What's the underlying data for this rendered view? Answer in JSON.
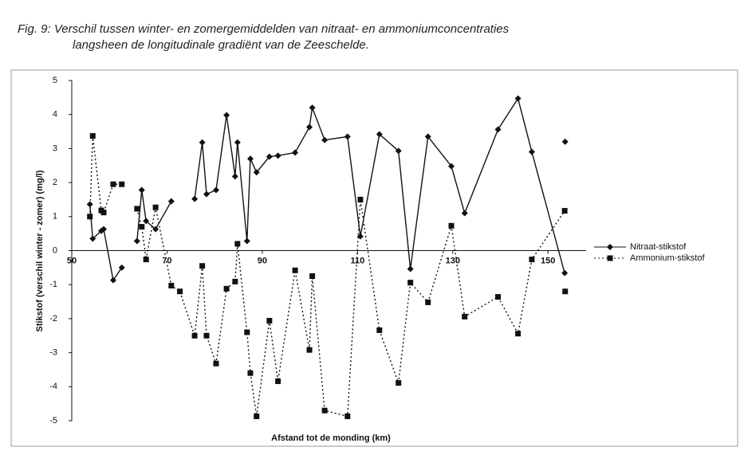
{
  "chart_data": {
    "type": "line",
    "caption": [
      "Fig. 9:  Verschil tussen winter- en zomergemiddelden van nitraat- en ammoniumconcentraties",
      "langsheen de longitudinale gradiënt van de Zeeschelde."
    ],
    "xlabel": "Afstand tot de monding (km)",
    "ylabel": "Stikstof (verschil winter - zomer) (mg/l)",
    "xlim": [
      50,
      158
    ],
    "xticks": [
      50,
      70,
      90,
      110,
      130,
      150
    ],
    "ylim": [
      -5,
      5
    ],
    "yticks": [
      -5,
      -4,
      -3,
      -2,
      -1,
      0,
      1,
      2,
      3,
      4,
      5
    ],
    "legend": "right",
    "series": [
      {
        "name": "Nitraat-stikstof",
        "color": "#111111",
        "style": "solid",
        "marker": "diamond",
        "x": [
          53.8,
          54.4,
          56.2,
          56.7,
          58.7,
          60.5,
          null,
          63.7,
          64.7,
          65.6,
          67.6,
          70.9,
          null,
          75.8,
          77.4,
          78.3,
          80.3,
          82.5,
          84.3,
          84.8,
          86.8,
          87.5,
          88.8,
          91.5,
          93.3,
          96.9,
          99.9,
          100.5,
          103.1,
          107.9,
          110.6,
          114.6,
          118.6,
          121.1,
          124.8,
          129.7,
          132.5,
          139.5,
          143.7,
          146.6,
          153.5,
          null,
          153.6
        ],
        "values": [
          1.36,
          0.35,
          0.58,
          0.63,
          -0.87,
          -0.5,
          null,
          0.28,
          1.78,
          0.87,
          0.63,
          1.45,
          null,
          1.52,
          3.18,
          1.66,
          1.78,
          3.98,
          2.18,
          3.18,
          0.28,
          2.7,
          2.3,
          2.76,
          2.79,
          2.88,
          3.63,
          4.2,
          3.25,
          3.35,
          0.42,
          3.42,
          2.93,
          -0.54,
          3.35,
          2.48,
          1.1,
          3.56,
          4.47,
          2.9,
          -0.66,
          null,
          3.2
        ]
      },
      {
        "name": "Ammonium-stikstof",
        "color": "#111111",
        "style": "dotted",
        "marker": "square",
        "x": [
          53.8,
          54.4,
          56.2,
          56.7,
          58.7,
          60.5,
          null,
          63.7,
          64.7,
          65.6,
          67.6,
          70.9,
          72.7,
          75.8,
          77.4,
          78.3,
          80.3,
          82.5,
          84.3,
          84.8,
          86.8,
          87.5,
          88.8,
          91.5,
          93.3,
          96.9,
          99.9,
          100.5,
          103.1,
          107.9,
          110.6,
          114.6,
          118.6,
          121.1,
          124.8,
          129.7,
          132.5,
          139.5,
          143.7,
          146.6,
          153.5,
          null,
          153.6
        ],
        "values": [
          1.0,
          3.37,
          1.18,
          1.12,
          1.95,
          1.95,
          null,
          1.23,
          0.7,
          -0.26,
          1.27,
          -1.03,
          -1.2,
          -2.5,
          -0.45,
          -2.5,
          -3.32,
          -1.12,
          -0.91,
          0.2,
          -2.4,
          -3.6,
          -4.87,
          -2.06,
          -3.84,
          -0.58,
          -2.92,
          -0.75,
          -4.7,
          -4.87,
          1.5,
          -2.34,
          -3.89,
          -0.94,
          -1.52,
          0.73,
          -1.94,
          -1.36,
          -2.44,
          -0.26,
          1.17,
          null,
          -1.2
        ]
      }
    ]
  }
}
